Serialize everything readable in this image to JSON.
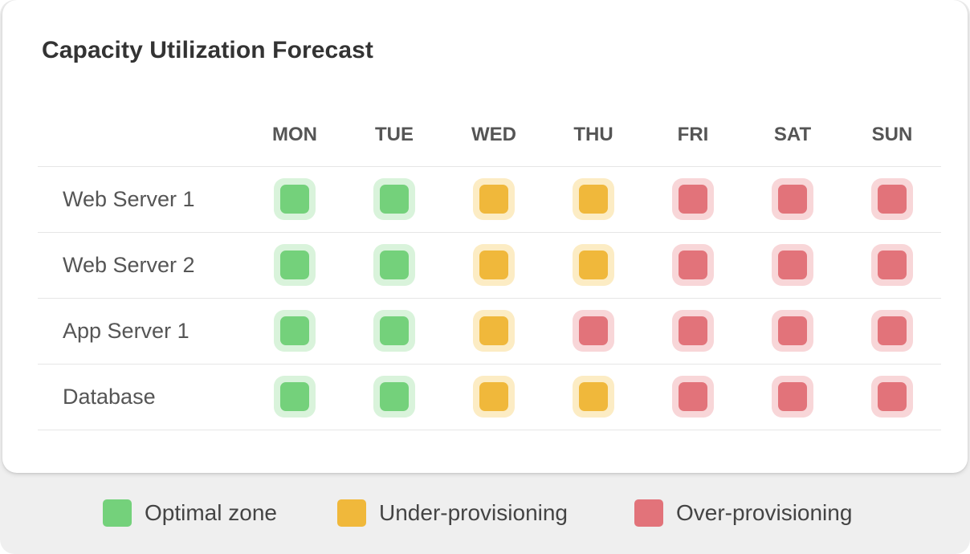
{
  "chart_data": {
    "type": "heatmap",
    "title": "Capacity Utilization Forecast",
    "columns": [
      "MON",
      "TUE",
      "WED",
      "THU",
      "FRI",
      "SAT",
      "SUN"
    ],
    "rows": [
      "Web Server 1",
      "Web Server 2",
      "App Server 1",
      "Database"
    ],
    "cells": [
      [
        "optimal",
        "optimal",
        "under",
        "under",
        "over",
        "over",
        "over"
      ],
      [
        "optimal",
        "optimal",
        "under",
        "under",
        "over",
        "over",
        "over"
      ],
      [
        "optimal",
        "optimal",
        "under",
        "over",
        "over",
        "over",
        "over"
      ],
      [
        "optimal",
        "optimal",
        "under",
        "under",
        "over",
        "over",
        "over"
      ]
    ],
    "categories": {
      "optimal": {
        "label": "Optimal zone",
        "color": "#74d17b",
        "halo": "#d9f3db"
      },
      "under": {
        "label": "Under-provisioning",
        "color": "#f0b83b",
        "halo": "#fcecc4"
      },
      "over": {
        "label": "Over-provisioning",
        "color": "#e2737a",
        "halo": "#f8d6d8"
      }
    },
    "legend_position": "bottom",
    "legend_order": [
      "optimal",
      "under",
      "over"
    ]
  }
}
